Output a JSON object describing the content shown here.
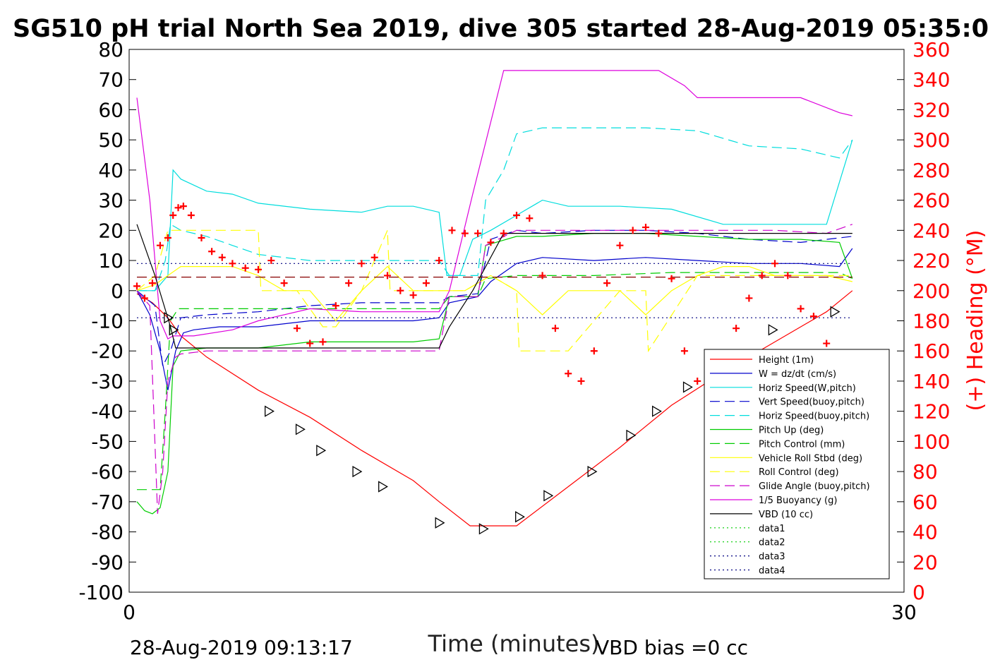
{
  "chart_data": {
    "type": "line",
    "title": "SG510 pH trial North Sea 2019, dive 305 started 28-Aug-2019 05:35:0",
    "xlabel": "Time (minutes)",
    "ylabel": "",
    "y2label": "(+) Heading (°M)",
    "xlim": [
      0,
      30
    ],
    "ylim": [
      -100,
      80
    ],
    "y2lim": [
      0,
      360
    ],
    "xticks": [
      0,
      30
    ],
    "yticks": [
      80,
      70,
      60,
      50,
      40,
      30,
      20,
      10,
      0,
      -10,
      -20,
      -30,
      -40,
      -50,
      -60,
      -70,
      -80,
      -90,
      -100
    ],
    "y2ticks": [
      360,
      340,
      320,
      300,
      280,
      260,
      240,
      220,
      200,
      180,
      160,
      140,
      120,
      100,
      80,
      60,
      40,
      20,
      0
    ],
    "grid": false,
    "legend_position": "bottom-right",
    "footer_left": "28-Aug-2019 09:13:17",
    "footer_right": "VBD bias =0 cc",
    "colors": {
      "axis_right": "#ff0000",
      "axis_left": "#000000"
    },
    "series": [
      {
        "name": "Height (1m)",
        "color": "#ff0000",
        "style": "solid",
        "x": [
          0.3,
          0.9,
          1.5,
          2.0,
          3.0,
          5.0,
          7.0,
          9.0,
          11.0,
          12.0,
          13.2,
          15.0,
          17.0,
          19.0,
          21.0,
          23.0,
          25.0,
          27.0,
          28.0
        ],
        "y": [
          -1,
          -4,
          -9,
          -15,
          -22,
          -33,
          -42,
          -53,
          -63,
          -70,
          -78,
          -78,
          -65,
          -52,
          -38,
          -27,
          -17,
          -7,
          0
        ]
      },
      {
        "name": "W = dz/dt (cm/s)",
        "color": "#0000cc",
        "style": "solid",
        "x": [
          0.3,
          0.8,
          1.2,
          1.5,
          1.8,
          2.1,
          2.5,
          3.5,
          5.0,
          7.0,
          9.0,
          11.0,
          12.0,
          12.4,
          13.5,
          14.0,
          15.0,
          16.0,
          18.0,
          20.0,
          22.0,
          24.0,
          26.0,
          27.5,
          28.0
        ],
        "y": [
          0,
          -8,
          -20,
          -33,
          -20,
          -14,
          -13,
          -12,
          -12,
          -10,
          -10,
          -10,
          -9,
          -4,
          -2,
          3,
          9,
          11,
          10,
          11,
          10,
          9,
          9,
          8,
          14
        ]
      },
      {
        "name": "Horiz Speed(W,pitch)",
        "color": "#00dddd",
        "style": "solid",
        "x": [
          0.3,
          1.0,
          1.5,
          1.7,
          2.0,
          3.0,
          4.0,
          5.0,
          7.0,
          9.0,
          10.0,
          11.0,
          12.0,
          12.3,
          12.8,
          13.3,
          14.0,
          15.0,
          16.0,
          17.0,
          19.0,
          21.0,
          23.0,
          25.0,
          27.0,
          28.0
        ],
        "y": [
          0,
          0,
          5,
          40,
          37,
          33,
          32,
          29,
          27,
          26,
          28,
          28,
          26,
          5,
          5,
          17,
          20,
          25,
          30,
          28,
          28,
          27,
          22,
          22,
          22,
          50
        ]
      },
      {
        "name": "Vert Speed(buoy,pitch)",
        "color": "#0000cc",
        "style": "dashed",
        "x": [
          0.3,
          1.0,
          1.3,
          1.6,
          2.0,
          3.0,
          5.0,
          7.0,
          9.0,
          11.0,
          12.0,
          12.4,
          13.5,
          14.0,
          15.0,
          16.0,
          18.0,
          20.0,
          22.0,
          24.0,
          26.0,
          28.0
        ],
        "y": [
          0,
          -5,
          -25,
          -20,
          -9,
          -8,
          -7,
          -5,
          -4,
          -4,
          -4,
          -2,
          -1,
          17,
          20,
          19,
          20,
          20,
          19,
          17,
          16,
          18
        ]
      },
      {
        "name": "Horiz Speed(buoy,pitch)",
        "color": "#00dddd",
        "style": "dashed",
        "x": [
          0.3,
          1.0,
          1.4,
          1.6,
          2.0,
          3.0,
          5.0,
          7.0,
          9.0,
          11.0,
          12.0,
          12.4,
          13.5,
          13.8,
          14.5,
          15.0,
          16.0,
          18.0,
          20.0,
          22.0,
          24.0,
          26.0,
          27.5,
          28.0
        ],
        "y": [
          0,
          0,
          10,
          22,
          20,
          18,
          12,
          10,
          10,
          10,
          10,
          5,
          5,
          30,
          40,
          52,
          54,
          54,
          54,
          53,
          48,
          47,
          44,
          50
        ]
      },
      {
        "name": "Pitch Up (deg)",
        "color": "#00cc00",
        "style": "solid",
        "x": [
          0.3,
          0.6,
          0.9,
          1.2,
          1.5,
          1.7,
          2.0,
          3.0,
          5.0,
          7.0,
          9.0,
          11.0,
          12.0,
          12.4,
          13.5,
          13.8,
          15.0,
          16.0,
          18.0,
          20.0,
          22.0,
          24.0,
          26.0,
          27.5,
          28.0
        ],
        "y": [
          -70,
          -73,
          -74,
          -72,
          -60,
          -25,
          -20,
          -19,
          -19,
          -17,
          -17,
          -17,
          -16,
          -2,
          -2,
          15,
          18,
          18,
          19,
          19,
          18,
          17,
          17,
          16,
          4
        ]
      },
      {
        "name": "Pitch Control (mm)",
        "color": "#00cc00",
        "style": "dashed",
        "x": [
          0.3,
          0.5,
          1.2,
          1.4,
          1.6,
          1.9,
          3.0,
          5.0,
          7.0,
          9.0,
          11.0,
          12.0,
          12.4,
          13.5,
          13.8,
          15.0,
          18.0,
          21.0,
          24.0,
          26.5,
          27.5,
          28.0
        ],
        "y": [
          -66,
          -66,
          -66,
          -40,
          -10,
          -6,
          -6,
          -6,
          -6,
          -6,
          -6,
          -6,
          -2,
          -2,
          4,
          5,
          5,
          6,
          6,
          6,
          6,
          4
        ]
      },
      {
        "name": "Vehicle Roll Stbd (deg)",
        "color": "#ffff00",
        "style": "solid",
        "x": [
          0.3,
          1.0,
          1.5,
          2.0,
          3.0,
          4.0,
          5.0,
          6.0,
          7.0,
          8.0,
          9.0,
          10.0,
          11.0,
          12.0,
          13.0,
          14.0,
          15.0,
          16.0,
          17.0,
          18.0,
          19.0,
          20.0,
          21.0,
          22.0,
          23.0,
          24.0,
          25.0,
          26.0,
          27.0,
          28.0
        ],
        "y": [
          0,
          2,
          5,
          8,
          8,
          8,
          5,
          0,
          0,
          -10,
          0,
          8,
          0,
          0,
          0,
          5,
          0,
          -8,
          0,
          0,
          0,
          -8,
          0,
          5,
          8,
          8,
          5,
          5,
          5,
          3
        ]
      },
      {
        "name": "Roll Control (deg)",
        "color": "#ffff00",
        "style": "dashed",
        "x": [
          0.3,
          1.0,
          1.5,
          2.0,
          3.0,
          5.0,
          5.1,
          6.5,
          7.5,
          8.0,
          9.0,
          10.0,
          10.1,
          11.0,
          12.0,
          13.0,
          14.0,
          15.0,
          15.1,
          17.0,
          19.0,
          20.0,
          20.1,
          22.0,
          24.0,
          26.0,
          28.0
        ],
        "y": [
          0,
          5,
          20,
          20,
          20,
          20,
          0,
          0,
          -12,
          -12,
          0,
          20,
          0,
          0,
          0,
          0,
          5,
          0,
          -20,
          -20,
          0,
          0,
          -20,
          5,
          5,
          5,
          5
        ]
      },
      {
        "name": "Glide Angle (buoy,pitch)",
        "color": "#cc00cc",
        "style": "dashed",
        "x": [
          0.3,
          0.8,
          1.1,
          1.3,
          1.5,
          1.8,
          2.0,
          3.0,
          5.0,
          7.0,
          9.0,
          11.0,
          12.0,
          12.4,
          13.5,
          13.8,
          15.0,
          17.0,
          19.0,
          21.0,
          23.0,
          25.0,
          27.0,
          28.0
        ],
        "y": [
          0,
          -5,
          -74,
          -60,
          -30,
          -22,
          -21,
          -20,
          -20,
          -20,
          -20,
          -20,
          -20,
          -2,
          -2,
          15,
          20,
          20,
          20,
          20,
          20,
          20,
          19,
          22
        ]
      },
      {
        "name": "1/5 Buoyancy (g)",
        "color": "#dd00dd",
        "style": "solid",
        "x": [
          0.3,
          0.8,
          1.2,
          1.5,
          1.7,
          2.5,
          4.0,
          5.0,
          7.0,
          9.0,
          11.0,
          12.0,
          12.4,
          13.3,
          14.5,
          15.0,
          17.0,
          19.0,
          20.5,
          21.5,
          22.0,
          24.0,
          26.0,
          27.5,
          28.0
        ],
        "y": [
          64,
          30,
          -10,
          -16,
          -15,
          -15,
          -13,
          -10,
          -6,
          -7,
          -7,
          -7,
          0,
          32,
          73,
          73,
          73,
          73,
          73,
          68,
          64,
          64,
          64,
          59,
          58
        ]
      },
      {
        "name": "VBD (10 cc)",
        "color": "#000000",
        "style": "solid",
        "x": [
          0.3,
          1.0,
          1.6,
          1.8,
          3.0,
          5.0,
          7.0,
          9.0,
          11.0,
          12.0,
          12.4,
          13.3,
          14.5,
          15.0,
          17.0,
          19.0,
          21.0,
          23.0,
          25.0,
          27.0,
          28.0
        ],
        "y": [
          22,
          5,
          -12,
          -19,
          -19,
          -19,
          -19,
          -19,
          -19,
          -19,
          -12,
          0,
          19,
          19,
          19,
          19,
          19,
          19,
          19,
          19,
          19
        ]
      },
      {
        "name": "data1",
        "color": "#00cc00",
        "style": "dotted",
        "x": [],
        "y": []
      },
      {
        "name": "data2",
        "color": "#00cc00",
        "style": "dotted",
        "x": [],
        "y": []
      },
      {
        "name": "data3",
        "color": "#000080",
        "style": "dotted",
        "x": [
          0.3,
          28.0
        ],
        "y": [
          9,
          9
        ]
      },
      {
        "name": "data4",
        "color": "#000080",
        "style": "dotted",
        "x": [
          0.3,
          28.0
        ],
        "y": [
          -9,
          -9
        ]
      },
      {
        "name": "",
        "color": "#880000",
        "style": "dashed",
        "x": [
          0.3,
          28.0
        ],
        "y": [
          4.5,
          4.5
        ]
      }
    ],
    "heading": {
      "axis": "right",
      "color": "#ff0000",
      "marker": "+",
      "x": [
        0.3,
        0.6,
        0.9,
        1.2,
        1.5,
        1.7,
        1.9,
        2.1,
        2.4,
        2.8,
        3.2,
        3.6,
        4.0,
        4.5,
        5.0,
        5.5,
        6.0,
        6.5,
        7.0,
        7.5,
        8.0,
        8.5,
        9.0,
        9.5,
        10.0,
        10.5,
        11.0,
        11.5,
        12.0,
        12.5,
        13.0,
        13.5,
        14.0,
        14.5,
        15.0,
        15.5,
        16.0,
        16.5,
        17.0,
        17.5,
        18.0,
        18.5,
        19.0,
        19.5,
        20.0,
        20.5,
        21.0,
        21.5,
        22.0,
        22.5,
        23.0,
        23.5,
        24.0,
        24.5,
        25.0,
        25.5,
        26.0,
        26.5,
        27.0,
        27.5
      ],
      "y": [
        203,
        195,
        205,
        230,
        235,
        250,
        255,
        256,
        250,
        235,
        226,
        222,
        218,
        215,
        214,
        220,
        205,
        175,
        165,
        166,
        190,
        205,
        218,
        222,
        210,
        200,
        197,
        205,
        220,
        240,
        238,
        238,
        232,
        238,
        250,
        248,
        210,
        175,
        145,
        140,
        160,
        205,
        230,
        240,
        242,
        238,
        208,
        160,
        140,
        135,
        150,
        175,
        195,
        210,
        218,
        210,
        188,
        183,
        165,
        155
      ]
    },
    "triangles": {
      "x": [
        1.5,
        1.7,
        5.4,
        6.6,
        7.4,
        8.8,
        9.8,
        12.0,
        13.7,
        15.1,
        16.2,
        17.9,
        19.4,
        20.4,
        21.6,
        23.1,
        24.9,
        27.3
      ],
      "y": [
        -9,
        -13,
        -40,
        -46,
        -53,
        -60,
        -65,
        -77,
        -79,
        -75,
        -68,
        -60,
        -48,
        -40,
        -32,
        -24,
        -13,
        -7
      ]
    }
  }
}
